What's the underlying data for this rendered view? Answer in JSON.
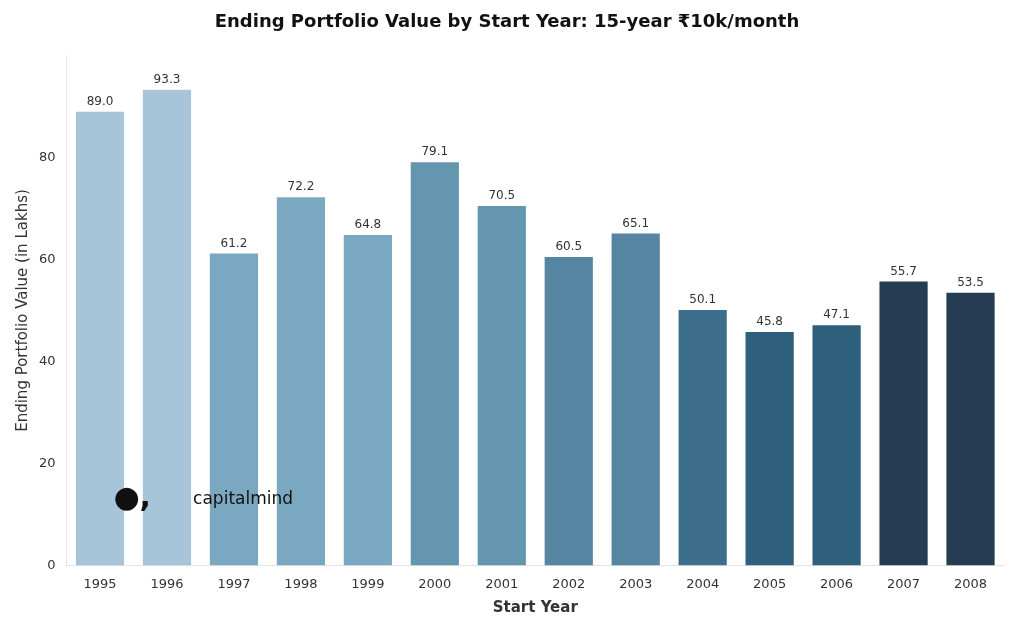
{
  "chart_data": {
    "type": "bar",
    "title": "Ending Portfolio Value by Start Year: 15-year ₹10k/month",
    "xlabel": "Start Year",
    "ylabel": "Ending Portfolio Value (in Lakhs)",
    "categories": [
      "1995",
      "1996",
      "1997",
      "1998",
      "1999",
      "2000",
      "2001",
      "2002",
      "2003",
      "2004",
      "2005",
      "2006",
      "2007",
      "2008"
    ],
    "values": [
      89.0,
      93.3,
      61.2,
      72.2,
      64.8,
      79.1,
      70.5,
      60.5,
      65.1,
      50.1,
      45.8,
      47.1,
      55.7,
      53.5
    ],
    "value_labels": [
      "89.0",
      "93.3",
      "61.2",
      "72.2",
      "64.8",
      "79.1",
      "70.5",
      "60.5",
      "65.1",
      "50.1",
      "45.8",
      "47.1",
      "55.7",
      "53.5"
    ],
    "colors": [
      "#a8c4d8",
      "#a8c4d8",
      "#7aa8c0",
      "#7aa8c0",
      "#7aa8c0",
      "#6496b0",
      "#6496b0",
      "#5585a0",
      "#5585a0",
      "#3d6f8c",
      "#2e5f7c",
      "#2e5f7c",
      "#253d52",
      "#253d52"
    ],
    "ylim": [
      0,
      100
    ],
    "yticks": [
      0,
      20,
      40,
      60,
      80
    ],
    "grid": false,
    "legend": false,
    "data_labels": true,
    "annotations": [
      "●,",
      "capitalmind"
    ]
  }
}
